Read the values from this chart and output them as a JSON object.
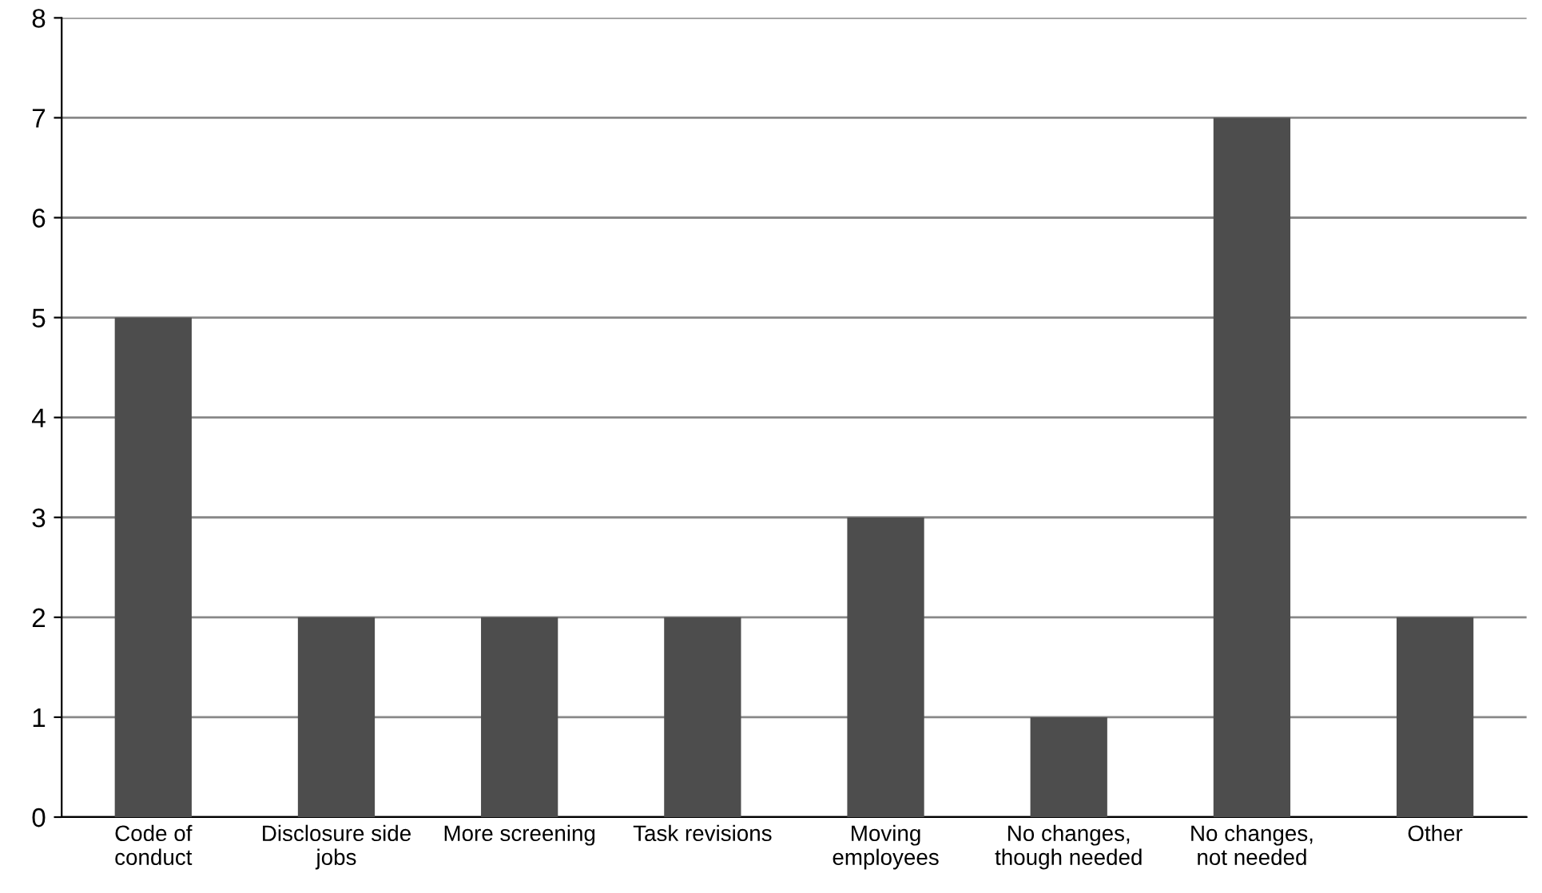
{
  "chart_data": {
    "type": "bar",
    "categories": [
      "Code of\nconduct",
      "Disclosure side\njobs",
      "More screening",
      "Task revisions",
      "Moving\nemployees",
      "No changes,\nthough needed",
      "No changes,\nnot needed",
      "Other"
    ],
    "values": [
      5,
      2,
      2,
      2,
      3,
      1,
      7,
      2
    ],
    "color": "#4d4d4d",
    "ylim": [
      0,
      8
    ],
    "yticks": [
      0,
      1,
      2,
      3,
      4,
      5,
      6,
      7,
      8
    ],
    "grid": "y"
  }
}
